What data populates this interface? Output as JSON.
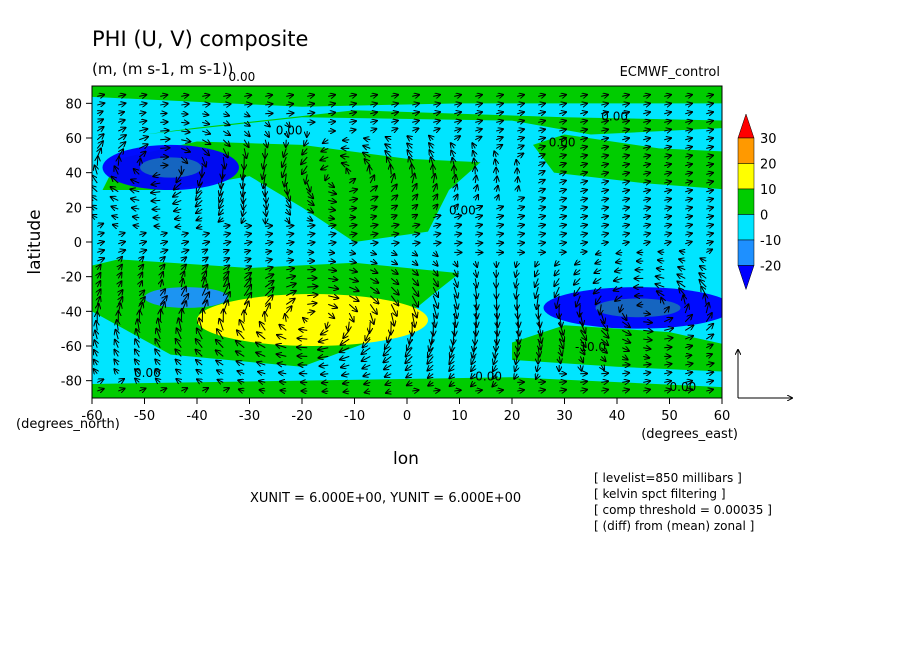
{
  "chart_data": {
    "type": "heatmap",
    "title": "PHI (U, V) composite",
    "subtitle": "(m, (m s-1, m s-1))",
    "source_label": "ECMWF_control",
    "xlabel": "lon",
    "ylabel": "latitude",
    "x_unit_label": "(degrees_east)",
    "y_unit_label": "(degrees_north)",
    "xlim": [
      -60,
      60
    ],
    "ylim": [
      -90,
      90
    ],
    "x_ticks": [
      -60,
      -50,
      -40,
      -30,
      -20,
      -10,
      0,
      10,
      20,
      30,
      40,
      50,
      60
    ],
    "y_ticks": [
      80,
      60,
      40,
      20,
      0,
      -20,
      -40,
      -60,
      -80
    ],
    "colorbar": {
      "levels": [
        30,
        20,
        10,
        0,
        -10,
        -20
      ],
      "colors": [
        "#ff0000",
        "#ff9900",
        "#ffff00",
        "#00cc00",
        "#00e5ff",
        "#1e90ff",
        "#0000ff"
      ]
    },
    "anomaly_centers": [
      {
        "lon": -45,
        "lat": 43,
        "value": -20,
        "rx": 13,
        "ry": 13
      },
      {
        "lon": -15,
        "lat": 38,
        "value": 10,
        "rx": 14,
        "ry": 10
      },
      {
        "lon": -18,
        "lat": -45,
        "value": 20,
        "rx": 22,
        "ry": 15
      },
      {
        "lon": 44,
        "lat": -38,
        "value": -20,
        "rx": 18,
        "ry": 12
      },
      {
        "lon": -42,
        "lat": -32,
        "value": -10,
        "rx": 8,
        "ry": 6
      }
    ],
    "contour_labels": [
      {
        "text": "0.00",
        "lon": -34,
        "lat": 93
      },
      {
        "text": "0.00",
        "lon": -25,
        "lat": 62
      },
      {
        "text": "0.00",
        "lon": 37,
        "lat": 70
      },
      {
        "text": "0.00",
        "lon": 27,
        "lat": 55
      },
      {
        "text": "0.00",
        "lon": 8,
        "lat": 16
      },
      {
        "text": "0.00",
        "lon": -52,
        "lat": -78
      },
      {
        "text": "0.00",
        "lon": 13,
        "lat": -80
      },
      {
        "text": "-10.0",
        "lon": 32,
        "lat": -63
      },
      {
        "text": "0.00",
        "lon": 50,
        "lat": -86
      }
    ],
    "vector_reference": {
      "x_unit": "6.000E+00",
      "y_unit": "6.000E+00"
    }
  },
  "footer": {
    "units_line": "XUNIT = 6.000E+00, YUNIT = 6.000E+00",
    "notes": [
      "[ levelist=850 millibars ]",
      "[ kelvin spct filtering ]",
      "[ comp threshold = 0.00035 ]",
      "[ (diff) from (mean) zonal ]"
    ]
  }
}
